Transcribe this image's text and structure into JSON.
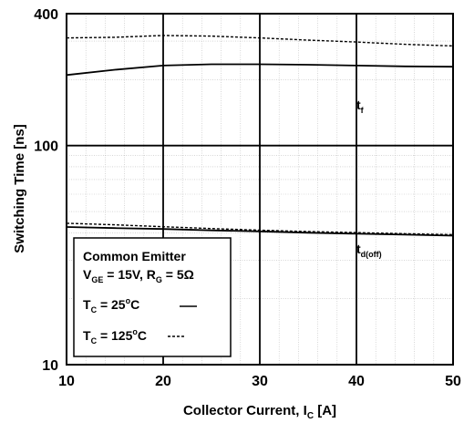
{
  "chart_data": {
    "type": "line",
    "xlabel": "Collector Current, I",
    "xlabel_sub": "C",
    "xlabel_unit": " [A]",
    "ylabel": "Switching Time [ns]",
    "xlim": [
      10,
      50
    ],
    "ylim": [
      10,
      400
    ],
    "yscale": "log",
    "x_ticks": [
      10,
      20,
      30,
      40,
      50
    ],
    "y_ticks": [
      10,
      100,
      400
    ],
    "grid": true,
    "series": [
      {
        "name": "tf",
        "condition": "TC = 25°C",
        "style": "solid",
        "x": [
          10,
          15,
          20,
          25,
          30,
          35,
          40,
          45,
          50
        ],
        "y": [
          210,
          222,
          232,
          235,
          235,
          234,
          232,
          230,
          229
        ]
      },
      {
        "name": "tf",
        "condition": "TC = 125°C",
        "style": "dashed",
        "x": [
          10,
          15,
          20,
          25,
          30,
          35,
          40,
          45,
          50
        ],
        "y": [
          310,
          312,
          318,
          316,
          310,
          303,
          297,
          290,
          285
        ]
      },
      {
        "name": "td(off)",
        "condition": "TC = 25°C",
        "style": "solid",
        "x": [
          10,
          15,
          20,
          25,
          30,
          35,
          40,
          45,
          50
        ],
        "y": [
          42.5,
          42.0,
          41.6,
          41.0,
          40.6,
          40.0,
          39.6,
          39.2,
          38.8
        ]
      },
      {
        "name": "td(off)",
        "condition": "TC = 125°C",
        "style": "dashed",
        "x": [
          10,
          15,
          20,
          25,
          30,
          35,
          40,
          45,
          50
        ],
        "y": [
          44.2,
          43.5,
          42.6,
          41.8,
          41.1,
          40.5,
          40.1,
          39.6,
          39.2
        ]
      }
    ],
    "curve_labels": {
      "tf": {
        "base": "t",
        "sub": "f"
      },
      "tdoff": {
        "base": "t",
        "sub": "d(off)"
      }
    },
    "legend": {
      "placement": "bottom-left",
      "title": "Common Emitter",
      "line2": {
        "v": "V",
        "v_sub": "GE",
        "v_val": " = 15V, R",
        "r_sub": "G",
        "r_val": " = 5Ω"
      },
      "entry1": {
        "t": "T",
        "sub": "C",
        "pre": " = 25",
        "sup": "o",
        "post": "C"
      },
      "entry2": {
        "t": "T",
        "sub": "C",
        "pre": " = 125",
        "sup": "o",
        "post": "C"
      }
    }
  }
}
